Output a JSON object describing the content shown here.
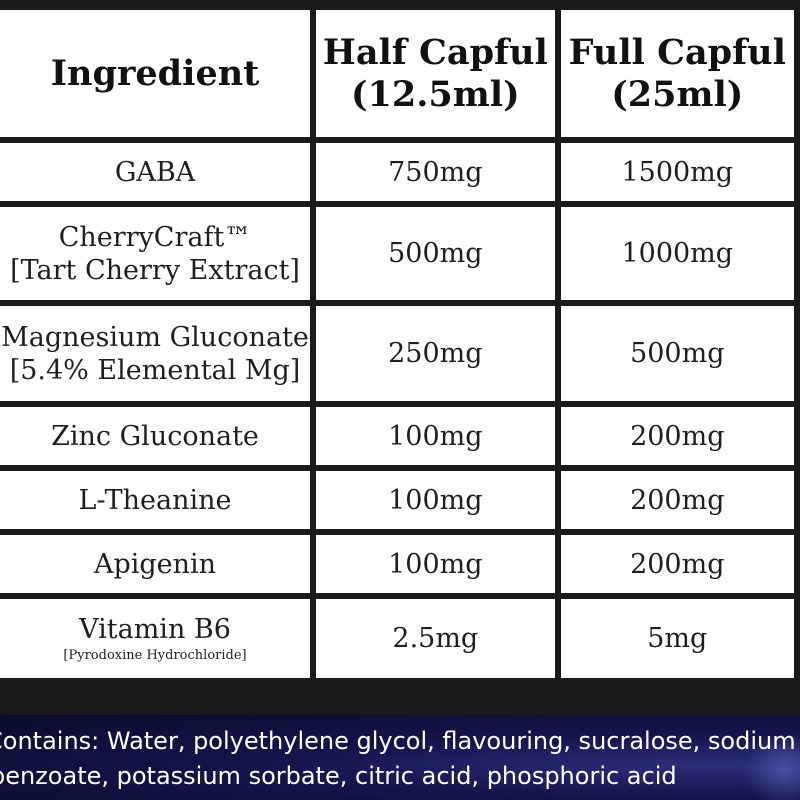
{
  "table": {
    "headers": [
      {
        "line1": "Ingredient",
        "line2": ""
      },
      {
        "line1": "Half Capful",
        "line2": "(12.5ml)"
      },
      {
        "line1": "Full Capful",
        "line2": "(25ml)"
      }
    ],
    "rows": [
      {
        "ingredient": "GABA",
        "ingredient_sub": "",
        "half": "750mg",
        "full": "1500mg"
      },
      {
        "ingredient": "CherryCraft™",
        "ingredient_sub": "[Tart Cherry Extract]",
        "half": "500mg",
        "full": "1000mg"
      },
      {
        "ingredient": "Magnesium Gluconate",
        "ingredient_sub": "[5.4% Elemental Mg]",
        "half": "250mg",
        "full": "500mg"
      },
      {
        "ingredient": "Zinc Gluconate",
        "ingredient_sub": "",
        "half": "100mg",
        "full": "200mg"
      },
      {
        "ingredient": "L-Theanine",
        "ingredient_sub": "",
        "half": "100mg",
        "full": "200mg"
      },
      {
        "ingredient": "Apigenin",
        "ingredient_sub": "",
        "half": "100mg",
        "full": "200mg"
      },
      {
        "ingredient": "Vitamin B6",
        "ingredient_sub": "[Pyrodoxine Hydrochloride]",
        "half": "2.5mg",
        "full": "5mg"
      }
    ]
  },
  "footer": {
    "line1": "Contains: Water, polyethylene glycol, flavouring, sucralose, sodium",
    "line2": "benzoate, potassium sorbate, citric acid, phosphoric acid"
  },
  "colors": {
    "grid": "#1a1a1a",
    "cell": "#ffffff",
    "footer_bg": "#13144a",
    "footer_text": "#ffffff"
  }
}
